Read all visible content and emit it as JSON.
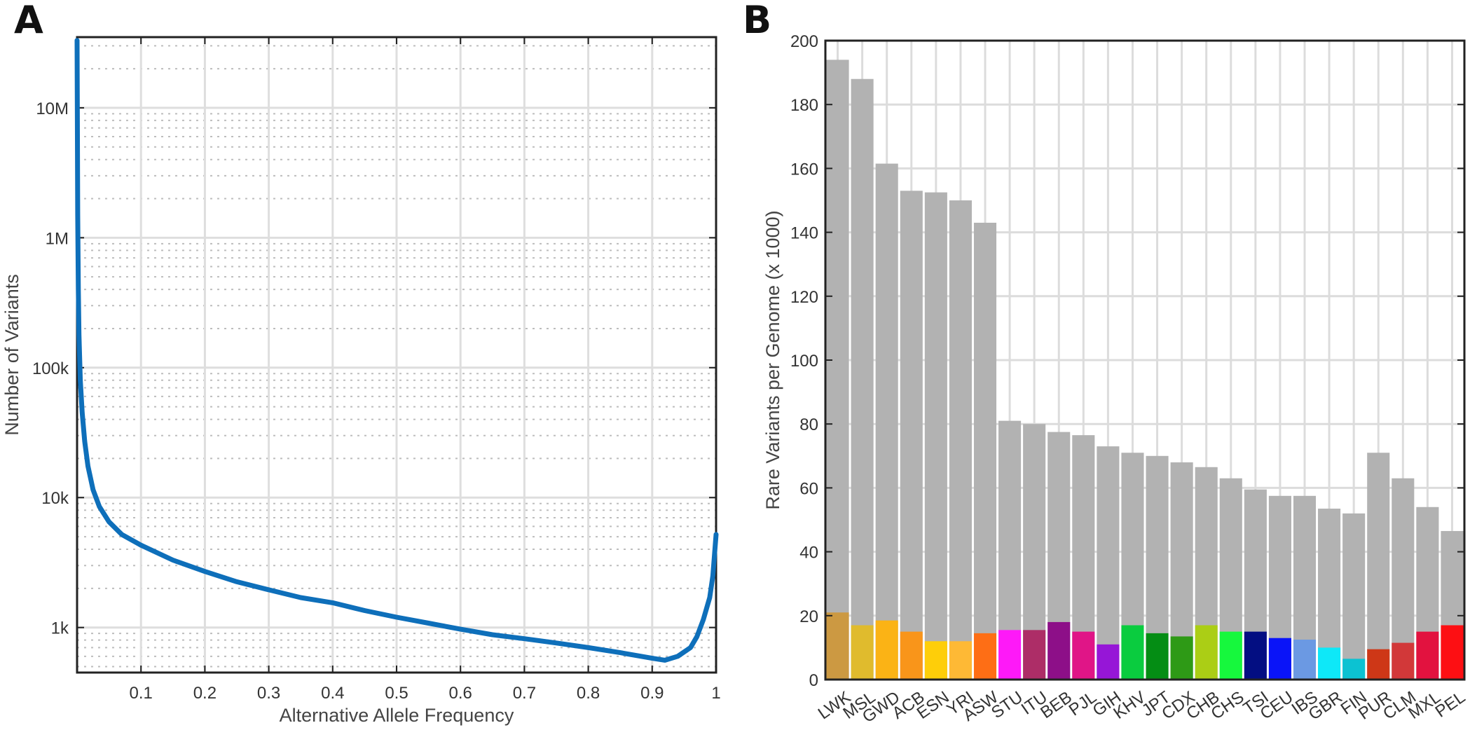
{
  "chart_data": [
    {
      "panel": "A",
      "type": "line",
      "xlabel": "Alternative Allele Frequency",
      "ylabel": "Number of Variants",
      "yscale": "log",
      "xlim": [
        0,
        1
      ],
      "ylim": [
        450,
        35000000
      ],
      "xticks": [
        0.1,
        0.2,
        0.3,
        0.4,
        0.5,
        0.6,
        0.7,
        0.8,
        0.9,
        1
      ],
      "xtick_labels": [
        "0.1",
        "0.2",
        "0.3",
        "0.4",
        "0.5",
        "0.6",
        "0.7",
        "0.8",
        "0.9",
        "1"
      ],
      "yticks": [
        1000,
        10000,
        100000,
        1000000,
        10000000
      ],
      "ytick_labels": [
        "1k",
        "10k",
        "100k",
        "1M",
        "10M"
      ],
      "grid": true,
      "color": "#0e6fba",
      "series": [
        {
          "x": [
            0.0,
            0.001,
            0.002,
            0.003,
            0.005,
            0.008,
            0.012,
            0.017,
            0.025,
            0.035,
            0.05,
            0.07,
            0.1,
            0.15,
            0.2,
            0.25,
            0.3,
            0.35,
            0.4,
            0.45,
            0.5,
            0.55,
            0.6,
            0.65,
            0.7,
            0.75,
            0.8,
            0.85,
            0.9,
            0.92,
            0.94,
            0.96,
            0.97,
            0.98,
            0.99,
            0.995,
            1.0
          ],
          "y": [
            33000000,
            1500000,
            400000,
            180000,
            80000,
            45000,
            27000,
            17500,
            11500,
            8500,
            6500,
            5200,
            4300,
            3300,
            2700,
            2250,
            1950,
            1700,
            1550,
            1350,
            1200,
            1080,
            970,
            880,
            820,
            760,
            700,
            640,
            580,
            560,
            600,
            700,
            850,
            1150,
            1700,
            2500,
            5200
          ]
        }
      ]
    },
    {
      "panel": "B",
      "type": "bar",
      "ylabel": "Rare Variants per Genome (x 1000)",
      "ylim": [
        0,
        200
      ],
      "yticks": [
        0,
        20,
        40,
        60,
        80,
        100,
        120,
        140,
        160,
        180,
        200
      ],
      "grid": true,
      "categories": [
        "LWK",
        "MSL",
        "GWD",
        "ACB",
        "ESN",
        "YRI",
        "ASW",
        "STU",
        "ITU",
        "BEB",
        "PJL",
        "GIH",
        "KHV",
        "JPT",
        "CDX",
        "CHB",
        "CHS",
        "TSI",
        "CEU",
        "IBS",
        "GBR",
        "FIN",
        "PUR",
        "CLM",
        "MXL",
        "PEL"
      ],
      "series": [
        {
          "values": [
            194,
            188,
            161.5,
            153,
            152.5,
            150,
            143,
            81,
            80,
            77.5,
            76.5,
            73,
            71,
            70,
            68,
            66.5,
            63,
            59.5,
            57.5,
            57.5,
            53.5,
            52,
            71,
            63,
            54,
            46.5
          ],
          "color": "#b2b2b2"
        },
        {
          "values": [
            21,
            17,
            18.5,
            15,
            12,
            12,
            14.5,
            15.5,
            15.5,
            18,
            15,
            11,
            17,
            14.5,
            13.5,
            17,
            15,
            15,
            13,
            12.5,
            10,
            6.5,
            9.5,
            11.5,
            15,
            17
          ],
          "colors": [
            "#cc9942",
            "#e0bb2d",
            "#fbb315",
            "#f9951a",
            "#fece09",
            "#feb935",
            "#fe6e15",
            "#fe19f8",
            "#ad2d67",
            "#8d0f88",
            "#e01587",
            "#9616d7",
            "#0acc3f",
            "#048d14",
            "#2e9a16",
            "#abce15",
            "#16f83d",
            "#030e82",
            "#0a14f8",
            "#6b99e3",
            "#0ee8f8",
            "#0cc2d2",
            "#ce3717",
            "#d23839",
            "#e2123f",
            "#fd0f13"
          ]
        }
      ]
    }
  ],
  "panel_labels": {
    "a": "A",
    "b": "B"
  }
}
